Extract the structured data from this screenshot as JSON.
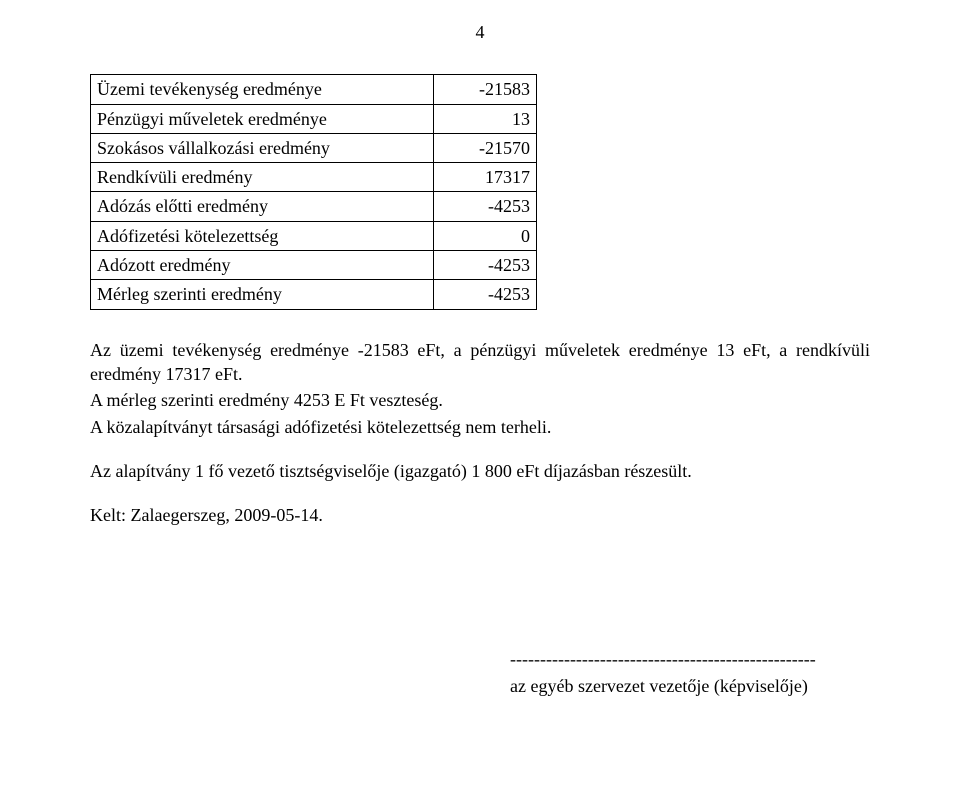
{
  "page_number": "4",
  "table": {
    "rows": [
      {
        "label": "Üzemi tevékenység eredménye",
        "value": "-21583"
      },
      {
        "label": "Pénzügyi műveletek eredménye",
        "value": "13"
      },
      {
        "label": "Szokásos vállalkozási eredmény",
        "value": "-21570"
      },
      {
        "label": "Rendkívüli eredmény",
        "value": "17317"
      },
      {
        "label": "Adózás előtti eredmény",
        "value": "-4253"
      },
      {
        "label": "Adófizetési kötelezettség",
        "value": "0"
      },
      {
        "label": "Adózott eredmény",
        "value": "-4253"
      },
      {
        "label": "Mérleg szerinti eredmény",
        "value": "-4253"
      }
    ]
  },
  "paragraphs": {
    "p1": "Az üzemi tevékenység eredménye -21583 eFt, a pénzügyi műveletek eredménye 13 eFt, a rendkívüli eredmény  17317 eFt.",
    "p2": "A mérleg szerinti eredmény 4253 E Ft veszteség.",
    "p3": "A közalapítványt társasági adófizetési kötelezettség nem terheli.",
    "p4": "Az alapítvány 1 fő vezető tisztségviselője (igazgató) 1 800 eFt díjazásban részesült.",
    "date": "Kelt: Zalaegerszeg, 2009-05-14."
  },
  "signature": {
    "line": "---------------------------------------------------",
    "caption": "az egyéb szervezet vezetője (képviselője)"
  }
}
